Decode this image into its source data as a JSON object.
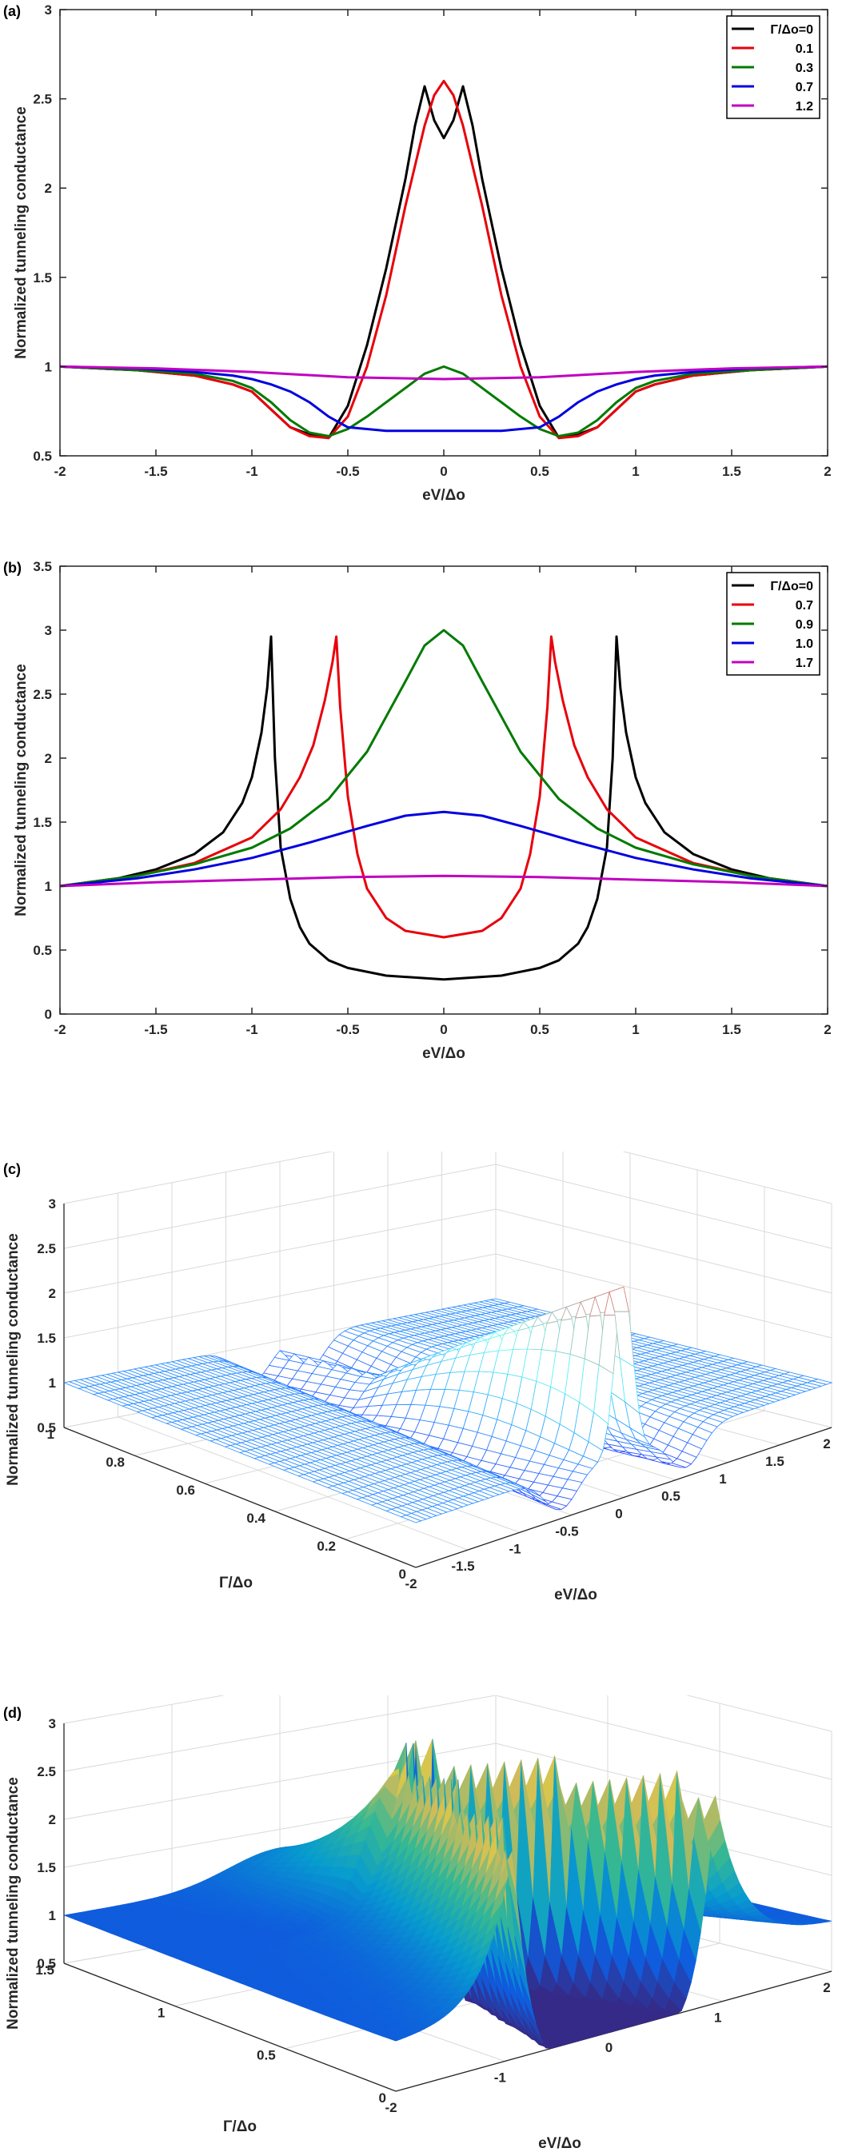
{
  "chart_data": [
    {
      "panel": "(a)",
      "type": "line",
      "xlabel": "eV/Δo",
      "ylabel": "Normalized tunneling conductance",
      "xlim": [
        -2,
        2
      ],
      "ylim": [
        0.5,
        3
      ],
      "xticks": [
        "-2",
        "-1.5",
        "-1",
        "-0.5",
        "0",
        "0.5",
        "1",
        "1.5",
        "2"
      ],
      "yticks": [
        "0.5",
        "1",
        "1.5",
        "2",
        "2.5",
        "3"
      ],
      "grid": false,
      "legend_position": "top-right",
      "series": [
        {
          "name": "Γ/Δo=0",
          "color": "#000000",
          "x": [
            -2,
            -1.6,
            -1.3,
            -1.1,
            -1.0,
            -0.9,
            -0.8,
            -0.7,
            -0.6,
            -0.5,
            -0.4,
            -0.3,
            -0.2,
            -0.15,
            -0.1,
            -0.05,
            0,
            0.05,
            0.1,
            0.15,
            0.2,
            0.3,
            0.4,
            0.5,
            0.6,
            0.7,
            0.8,
            0.9,
            1.0,
            1.1,
            1.3,
            1.6,
            2
          ],
          "y": [
            1.0,
            0.98,
            0.95,
            0.9,
            0.86,
            0.76,
            0.66,
            0.62,
            0.6,
            0.78,
            1.12,
            1.55,
            2.05,
            2.35,
            2.57,
            2.38,
            2.28,
            2.38,
            2.57,
            2.35,
            2.05,
            1.55,
            1.12,
            0.78,
            0.6,
            0.62,
            0.66,
            0.76,
            0.86,
            0.9,
            0.95,
            0.98,
            1.0
          ]
        },
        {
          "name": "0.1",
          "color": "#e8000b",
          "x": [
            -2,
            -1.6,
            -1.3,
            -1.1,
            -1.0,
            -0.9,
            -0.8,
            -0.7,
            -0.6,
            -0.5,
            -0.4,
            -0.3,
            -0.2,
            -0.1,
            -0.05,
            0,
            0.05,
            0.1,
            0.2,
            0.3,
            0.4,
            0.5,
            0.6,
            0.7,
            0.8,
            0.9,
            1.0,
            1.1,
            1.3,
            1.6,
            2
          ],
          "y": [
            1.0,
            0.98,
            0.95,
            0.9,
            0.86,
            0.76,
            0.66,
            0.61,
            0.6,
            0.72,
            1.0,
            1.4,
            1.9,
            2.35,
            2.52,
            2.6,
            2.52,
            2.35,
            1.9,
            1.4,
            1.0,
            0.72,
            0.6,
            0.61,
            0.66,
            0.76,
            0.86,
            0.9,
            0.95,
            0.98,
            1.0
          ]
        },
        {
          "name": "0.3",
          "color": "#007a00",
          "x": [
            -2,
            -1.6,
            -1.3,
            -1.1,
            -1.0,
            -0.9,
            -0.8,
            -0.7,
            -0.6,
            -0.5,
            -0.4,
            -0.3,
            -0.2,
            -0.1,
            0,
            0.1,
            0.2,
            0.3,
            0.4,
            0.5,
            0.6,
            0.7,
            0.8,
            0.9,
            1.0,
            1.1,
            1.3,
            1.6,
            2
          ],
          "y": [
            1.0,
            0.98,
            0.96,
            0.92,
            0.88,
            0.8,
            0.7,
            0.63,
            0.61,
            0.65,
            0.72,
            0.8,
            0.88,
            0.96,
            1.0,
            0.96,
            0.88,
            0.8,
            0.72,
            0.65,
            0.61,
            0.63,
            0.7,
            0.8,
            0.88,
            0.92,
            0.96,
            0.98,
            1.0
          ]
        },
        {
          "name": "0.7",
          "color": "#0000e0",
          "x": [
            -2,
            -1.6,
            -1.3,
            -1.1,
            -1.0,
            -0.9,
            -0.8,
            -0.7,
            -0.6,
            -0.5,
            -0.3,
            0,
            0.3,
            0.5,
            0.6,
            0.7,
            0.8,
            0.9,
            1.0,
            1.1,
            1.3,
            1.6,
            2
          ],
          "y": [
            1.0,
            0.99,
            0.97,
            0.95,
            0.93,
            0.9,
            0.86,
            0.8,
            0.72,
            0.66,
            0.64,
            0.64,
            0.64,
            0.66,
            0.72,
            0.8,
            0.86,
            0.9,
            0.93,
            0.95,
            0.97,
            0.99,
            1.0
          ]
        },
        {
          "name": "1.2",
          "color": "#c000c0",
          "x": [
            -2,
            -1.5,
            -1.0,
            -0.5,
            0,
            0.5,
            1.0,
            1.5,
            2
          ],
          "y": [
            1.0,
            0.99,
            0.97,
            0.94,
            0.93,
            0.94,
            0.97,
            0.99,
            1.0
          ]
        }
      ]
    },
    {
      "panel": "(b)",
      "type": "line",
      "xlabel": "eV/Δo",
      "ylabel": "Normalized tunneling conductance",
      "xlim": [
        -2,
        2
      ],
      "ylim": [
        0,
        3.5
      ],
      "xticks": [
        "-2",
        "-1.5",
        "-1",
        "-0.5",
        "0",
        "0.5",
        "1",
        "1.5",
        "2"
      ],
      "yticks": [
        "0",
        "0.5",
        "1",
        "1.5",
        "2",
        "2.5",
        "3",
        "3.5"
      ],
      "grid": false,
      "legend_position": "top-right",
      "series": [
        {
          "name": "Γ/Δo=0",
          "color": "#000000",
          "x": [
            -2,
            -1.7,
            -1.5,
            -1.3,
            -1.15,
            -1.05,
            -1.0,
            -0.95,
            -0.92,
            -0.9,
            -0.88,
            -0.85,
            -0.8,
            -0.75,
            -0.7,
            -0.6,
            -0.5,
            -0.3,
            0,
            0.3,
            0.5,
            0.6,
            0.7,
            0.75,
            0.8,
            0.85,
            0.88,
            0.9,
            0.92,
            0.95,
            1.0,
            1.05,
            1.15,
            1.3,
            1.5,
            1.7,
            2
          ],
          "y": [
            1.0,
            1.06,
            1.13,
            1.25,
            1.42,
            1.65,
            1.85,
            2.2,
            2.55,
            2.95,
            2.0,
            1.3,
            0.9,
            0.68,
            0.55,
            0.42,
            0.36,
            0.3,
            0.27,
            0.3,
            0.36,
            0.42,
            0.55,
            0.68,
            0.9,
            1.3,
            2.0,
            2.95,
            2.55,
            2.2,
            1.85,
            1.65,
            1.42,
            1.25,
            1.13,
            1.06,
            1.0
          ]
        },
        {
          "name": "0.7",
          "color": "#e8000b",
          "x": [
            -2,
            -1.6,
            -1.3,
            -1.0,
            -0.85,
            -0.75,
            -0.68,
            -0.62,
            -0.58,
            -0.56,
            -0.54,
            -0.5,
            -0.45,
            -0.4,
            -0.3,
            -0.2,
            0,
            0.2,
            0.3,
            0.4,
            0.45,
            0.5,
            0.54,
            0.56,
            0.58,
            0.62,
            0.68,
            0.75,
            0.85,
            1.0,
            1.3,
            1.6,
            2
          ],
          "y": [
            1.0,
            1.08,
            1.18,
            1.38,
            1.6,
            1.85,
            2.1,
            2.45,
            2.75,
            2.95,
            2.4,
            1.7,
            1.25,
            0.98,
            0.75,
            0.65,
            0.6,
            0.65,
            0.75,
            0.98,
            1.25,
            1.7,
            2.4,
            2.95,
            2.75,
            2.45,
            2.1,
            1.85,
            1.6,
            1.38,
            1.18,
            1.08,
            1.0
          ]
        },
        {
          "name": "0.9",
          "color": "#007a00",
          "x": [
            -2,
            -1.6,
            -1.3,
            -1.0,
            -0.8,
            -0.6,
            -0.4,
            -0.2,
            -0.1,
            0,
            0.1,
            0.2,
            0.4,
            0.6,
            0.8,
            1.0,
            1.3,
            1.6,
            2
          ],
          "y": [
            1.0,
            1.08,
            1.17,
            1.3,
            1.45,
            1.68,
            2.05,
            2.6,
            2.88,
            3.0,
            2.88,
            2.6,
            2.05,
            1.68,
            1.45,
            1.3,
            1.17,
            1.08,
            1.0
          ]
        },
        {
          "name": "1.0",
          "color": "#0000e0",
          "x": [
            -2,
            -1.6,
            -1.3,
            -1.0,
            -0.7,
            -0.4,
            -0.2,
            0,
            0.2,
            0.4,
            0.7,
            1.0,
            1.3,
            1.6,
            2
          ],
          "y": [
            1.0,
            1.06,
            1.13,
            1.22,
            1.34,
            1.47,
            1.55,
            1.58,
            1.55,
            1.47,
            1.34,
            1.22,
            1.13,
            1.06,
            1.0
          ]
        },
        {
          "name": "1.7",
          "color": "#c000c0",
          "x": [
            -2,
            -1.5,
            -1.0,
            -0.5,
            0,
            0.5,
            1.0,
            1.5,
            2
          ],
          "y": [
            1.0,
            1.03,
            1.05,
            1.07,
            1.08,
            1.07,
            1.05,
            1.03,
            1.0
          ]
        }
      ]
    },
    {
      "panel": "(c)",
      "type": "surface",
      "xlabel": "eV/Δo",
      "ylabel": "Γ/Δo",
      "zlabel": "Normalized tunneling conductance",
      "xlim": [
        -2,
        2
      ],
      "ylim": [
        0,
        1
      ],
      "zlim": [
        0.5,
        3
      ],
      "xticks": [
        "-2",
        "-1.5",
        "-1",
        "-0.5",
        "0",
        "0.5",
        "1",
        "1.5",
        "2"
      ],
      "yticks": [
        "0",
        "0.2",
        "0.4",
        "0.6",
        "0.8",
        "1"
      ],
      "zticks": [
        "0.5",
        "1",
        "1.5",
        "2",
        "2.5",
        "3"
      ],
      "grid": true,
      "colormap": "cool"
    },
    {
      "panel": "(d)",
      "type": "surface",
      "xlabel": "eV/Δo",
      "ylabel": "Γ/Δo",
      "zlabel": "Normalized tunneling conductance",
      "xlim": [
        -2,
        2
      ],
      "ylim": [
        0,
        1.5
      ],
      "zlim": [
        0.5,
        3
      ],
      "xticks": [
        "-2",
        "-1",
        "0",
        "1",
        "2"
      ],
      "yticks": [
        "0",
        "0.5",
        "1",
        "1.5"
      ],
      "zticks": [
        "0.5",
        "1",
        "1.5",
        "2",
        "2.5",
        "3"
      ],
      "grid": true,
      "colormap": "parula"
    }
  ]
}
